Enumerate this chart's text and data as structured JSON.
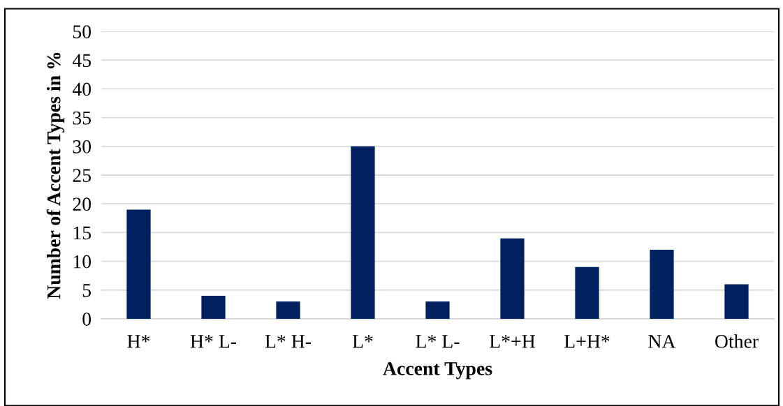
{
  "chart_data": {
    "type": "bar",
    "xlabel": "Accent Types",
    "ylabel": "Number of Accent Types in %",
    "categories": [
      "H*",
      "H* L-",
      "L* H-",
      "L*",
      "L* L-",
      "L*+H",
      "L+H*",
      "NA",
      "Other"
    ],
    "values": [
      19,
      4,
      3,
      30,
      3,
      14,
      9,
      12,
      6
    ],
    "color": "#002060",
    "ylim": [
      0,
      50
    ],
    "yticks": [
      0,
      5,
      10,
      15,
      20,
      25,
      30,
      35,
      40,
      45,
      50
    ],
    "grid": "y",
    "legend": false
  }
}
